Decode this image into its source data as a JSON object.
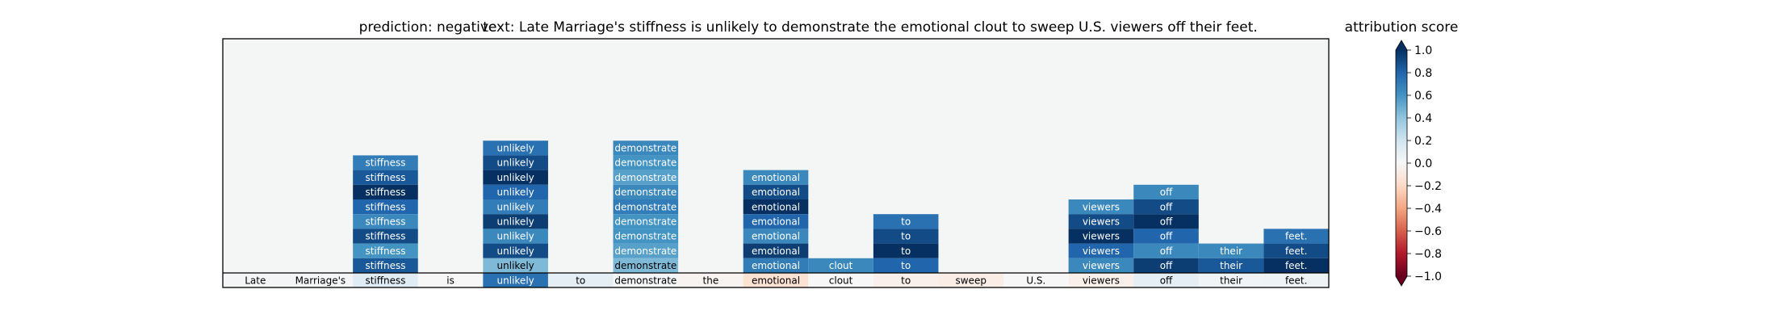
{
  "title_prediction": "prediction:  negative",
  "title_text": "text:  Late Marriage's stiffness is unlikely to demonstrate the emotional clout to sweep U.S. viewers off their feet.",
  "colorbar_title": "attribution score",
  "colors": {
    "panel_background": "#f4f6f6",
    "colormap": [
      "#67001f",
      "#b2182b",
      "#d6604d",
      "#f4a582",
      "#fddbc7",
      "#f7f7f7",
      "#d1e5f0",
      "#92c5de",
      "#4393c3",
      "#2166ac",
      "#053061"
    ]
  },
  "chart_data": {
    "type": "heatmap",
    "colormap": "RdBu",
    "value_range": [
      -1.0,
      1.0
    ],
    "tokens": [
      "Late",
      "Marriage's",
      "stiffness",
      "is",
      "unlikely",
      "to",
      "demonstrate",
      "the",
      "emotional",
      "clout",
      "to",
      "sweep",
      "U.S.",
      "viewers",
      "off",
      "their",
      "feet."
    ],
    "base_row_scores": [
      0.02,
      0.02,
      0.12,
      0.0,
      0.75,
      0.1,
      0.02,
      -0.03,
      -0.15,
      0.0,
      -0.05,
      -0.07,
      0.0,
      -0.05,
      0.1,
      0.03,
      0.05
    ],
    "stacks": [
      {
        "token_index": 2,
        "values": [
          0.7,
          0.85,
          1.0,
          0.8,
          0.65,
          0.9,
          0.6,
          0.85
        ]
      },
      {
        "token_index": 4,
        "values": [
          0.75,
          0.9,
          1.0,
          0.8,
          0.7,
          0.95,
          0.65,
          0.9,
          0.45
        ]
      },
      {
        "token_index": 6,
        "values": [
          0.65,
          0.6,
          0.55,
          0.65,
          0.7,
          0.6,
          0.6,
          0.55,
          0.45
        ]
      },
      {
        "token_index": 8,
        "values": [
          0.65,
          0.9,
          1.0,
          0.8,
          0.65,
          0.95,
          0.7
        ]
      },
      {
        "token_index": 9,
        "values": [
          0.65
        ]
      },
      {
        "token_index": 10,
        "values": [
          0.75,
          0.9,
          1.0,
          0.8
        ]
      },
      {
        "token_index": 13,
        "values": [
          0.65,
          0.9,
          1.0,
          0.8,
          0.65
        ]
      },
      {
        "token_index": 14,
        "values": [
          0.65,
          0.9,
          1.0,
          0.8,
          0.65,
          0.95
        ]
      },
      {
        "token_index": 15,
        "values": [
          0.65,
          0.85
        ]
      },
      {
        "token_index": 16,
        "values": [
          0.75,
          0.9,
          1.0
        ]
      }
    ],
    "colorbar_ticks": [
      "1.0",
      "0.8",
      "0.6",
      "0.4",
      "0.2",
      "0.0",
      "−0.2",
      "−0.4",
      "−0.6",
      "−0.8",
      "−1.0"
    ]
  }
}
